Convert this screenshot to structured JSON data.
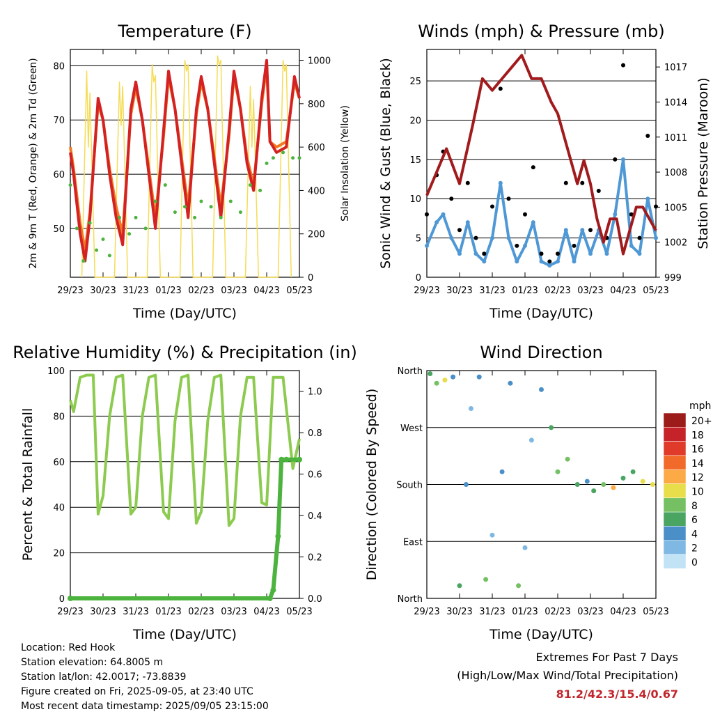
{
  "colors": {
    "temp": "#d42222",
    "temp9": "#f07a22",
    "dew": "#4cb33f",
    "solar": "#f5dc55",
    "gust": "#000000",
    "wind": "#4f98d6",
    "pressure": "#a11b1d",
    "rh": "#8ccb4f",
    "precip": "#4cb33f",
    "extremes_values": "#c0272d"
  },
  "info": {
    "location": "Location: Red Hook",
    "elevation": "Station elevation: 64.8005 m",
    "latlon": "Station lat/lon: 42.0017; -73.8839",
    "created": "Figure created on Fri, 2025-09-05, at 23:40 UTC",
    "latest": "Most recent data timestamp: 2025/09/05 23:15:00"
  },
  "extremes": {
    "title": "Extremes For Past 7 Days",
    "subtitle": "(High/Low/Max Wind/Total Precipitation)",
    "values": "81.2/42.3/15.4/0.67"
  },
  "chart_data": [
    {
      "type": "line",
      "title": "Temperature (F)",
      "xlabel": "Time (Day/UTC)",
      "ylabel": "2m & 9m T (Red, Orange) & 2m Td (Green)",
      "y2label": "Solar Insolation (Yellow)",
      "x_ticks": [
        "29/23",
        "30/23",
        "31/23",
        "01/23",
        "02/23",
        "03/23",
        "04/23",
        "05/23"
      ],
      "ylim": [
        41,
        83
      ],
      "y_ticks": [
        50,
        60,
        70,
        80
      ],
      "y2lim": [
        0,
        1050
      ],
      "y2_ticks": [
        0,
        200,
        400,
        600,
        800,
        1000
      ],
      "series": [
        {
          "name": "2m T",
          "x": [
            0,
            0.1,
            0.3,
            0.45,
            0.6,
            0.85,
            1,
            1.2,
            1.4,
            1.6,
            1.85,
            2,
            2.2,
            2.4,
            2.6,
            2.85,
            3,
            3.2,
            3.4,
            3.6,
            3.85,
            4,
            4.2,
            4.4,
            4.6,
            4.85,
            5,
            5.2,
            5.4,
            5.6,
            5.85,
            6,
            6.1,
            6.3,
            6.6,
            6.85,
            7
          ],
          "values": [
            64,
            60,
            49,
            44,
            52,
            74,
            70,
            60,
            52,
            47,
            72,
            77,
            70,
            60,
            50,
            68,
            79,
            72,
            62,
            52,
            72,
            78,
            72,
            62,
            52,
            68,
            79,
            72,
            62,
            57,
            74,
            81,
            66,
            64,
            65,
            78,
            74
          ]
        },
        {
          "name": "9m T",
          "x": [
            0,
            0.1,
            0.3,
            0.45,
            0.6,
            0.85,
            1,
            1.2,
            1.4,
            1.6,
            1.85,
            2,
            2.2,
            2.4,
            2.6,
            2.85,
            3,
            3.2,
            3.4,
            3.6,
            3.85,
            4,
            4.2,
            4.4,
            4.6,
            4.85,
            5,
            5.2,
            5.4,
            5.6,
            5.85,
            6,
            6.1,
            6.3,
            6.6,
            6.85,
            7
          ],
          "values": [
            65,
            61,
            51,
            46,
            53,
            73,
            70,
            61,
            54,
            49,
            71,
            76,
            70,
            61,
            52,
            67,
            78,
            72,
            63,
            54,
            71,
            77,
            72,
            63,
            54,
            67,
            78,
            72,
            63,
            58,
            73,
            80,
            66,
            65,
            66,
            77,
            74
          ]
        },
        {
          "name": "2m Td",
          "x": [
            0,
            0.2,
            0.4,
            0.6,
            0.8,
            1,
            1.2,
            1.5,
            1.8,
            2,
            2.3,
            2.6,
            2.9,
            3.2,
            3.5,
            3.8,
            4,
            4.3,
            4.6,
            4.9,
            5.2,
            5.5,
            5.8,
            6,
            6.2,
            6.5,
            6.8,
            7
          ],
          "values": [
            58,
            50,
            44,
            51,
            46,
            48,
            45,
            52,
            49,
            52,
            50,
            55,
            58,
            53,
            54,
            52,
            55,
            54,
            52,
            55,
            53,
            58,
            57,
            62,
            63,
            64,
            63,
            63
          ]
        },
        {
          "name": "Solar Insolation",
          "axis": "y2",
          "x": [
            0.35,
            0.5,
            0.55,
            0.6,
            0.75,
            1.35,
            1.5,
            1.55,
            1.6,
            1.75,
            2.35,
            2.5,
            2.55,
            2.6,
            2.75,
            3.35,
            3.5,
            3.55,
            3.6,
            3.75,
            4.35,
            4.5,
            4.55,
            4.6,
            4.75,
            5.35,
            5.5,
            5.55,
            5.6,
            5.75,
            6.35,
            6.5,
            6.55,
            6.6,
            6.75
          ],
          "values": [
            0,
            950,
            600,
            850,
            0,
            0,
            900,
            700,
            880,
            0,
            0,
            980,
            900,
            930,
            0,
            0,
            1000,
            950,
            980,
            0,
            0,
            1020,
            980,
            1000,
            0,
            0,
            880,
            600,
            820,
            0,
            0,
            1000,
            950,
            980,
            0
          ]
        }
      ]
    },
    {
      "type": "line",
      "title": "Winds (mph) & Pressure (mb)",
      "xlabel": "Time (Day/UTC)",
      "ylabel": "Sonic Wind & Gust (Blue, Black)",
      "y2label": "Station Pressure (Maroon)",
      "x_ticks": [
        "29/23",
        "30/23",
        "31/23",
        "01/23",
        "02/23",
        "03/23",
        "04/23",
        "05/23"
      ],
      "ylim": [
        0,
        29
      ],
      "y_ticks": [
        0,
        5,
        10,
        15,
        20,
        25
      ],
      "y2lim": [
        999,
        1018.5
      ],
      "y2_ticks": [
        999,
        1002,
        1005,
        1008,
        1011,
        1014,
        1017
      ],
      "series": [
        {
          "name": "Gust",
          "x": [
            0,
            0.3,
            0.5,
            0.75,
            1,
            1.25,
            1.5,
            1.75,
            2,
            2.25,
            2.5,
            2.75,
            3,
            3.25,
            3.5,
            3.75,
            4,
            4.25,
            4.5,
            4.75,
            5,
            5.25,
            5.5,
            5.75,
            6,
            6.25,
            6.5,
            6.75,
            7
          ],
          "values": [
            8,
            13,
            16,
            10,
            6,
            12,
            5,
            3,
            9,
            24,
            10,
            4,
            8,
            14,
            3,
            2,
            3,
            12,
            4,
            12,
            6,
            11,
            5,
            15,
            27,
            8,
            5,
            18,
            9
          ]
        },
        {
          "name": "Wind",
          "x": [
            0,
            0.3,
            0.5,
            0.75,
            1,
            1.25,
            1.5,
            1.75,
            2,
            2.25,
            2.5,
            2.75,
            3,
            3.25,
            3.5,
            3.75,
            4,
            4.25,
            4.5,
            4.75,
            5,
            5.25,
            5.5,
            5.75,
            6,
            6.25,
            6.5,
            6.75,
            7
          ],
          "values": [
            4,
            7,
            8,
            5,
            3,
            7,
            3,
            2,
            5,
            12,
            5,
            2,
            4,
            7,
            2,
            1.5,
            2,
            6,
            2,
            6,
            3,
            6,
            3,
            8,
            15,
            4,
            3,
            10,
            5
          ]
        },
        {
          "name": "Pressure",
          "axis": "y2",
          "x": [
            0,
            0.3,
            0.6,
            1,
            1.4,
            1.7,
            2,
            2.3,
            2.6,
            2.9,
            3.2,
            3.5,
            3.8,
            4,
            4.3,
            4.6,
            4.8,
            5,
            5.2,
            5.4,
            5.6,
            5.8,
            6,
            6.2,
            6.4,
            6.6,
            6.8,
            7
          ],
          "values": [
            1006,
            1008,
            1010,
            1007,
            1012,
            1016,
            1015,
            1016,
            1017,
            1018,
            1016,
            1016,
            1014,
            1013,
            1010,
            1007,
            1009,
            1007,
            1004,
            1002,
            1004,
            1004,
            1001,
            1003,
            1005,
            1005,
            1004,
            1003
          ]
        }
      ]
    },
    {
      "type": "line",
      "title": "Relative Humidity (%) & Precipitation (in)",
      "xlabel": "Time (Day/UTC)",
      "ylabel": "Percent & Total Rainfall",
      "x_ticks": [
        "29/23",
        "30/23",
        "31/23",
        "01/23",
        "02/23",
        "03/23",
        "04/23",
        "05/23"
      ],
      "ylim": [
        0,
        100
      ],
      "y_ticks": [
        0,
        20,
        40,
        60,
        80,
        100
      ],
      "y2lim": [
        0,
        1.1
      ],
      "y2_ticks": [
        0.0,
        0.2,
        0.4,
        0.6,
        0.8,
        1.0
      ],
      "series": [
        {
          "name": "RH",
          "x": [
            0,
            0.1,
            0.3,
            0.5,
            0.7,
            0.85,
            1,
            1.2,
            1.4,
            1.6,
            1.85,
            2,
            2.2,
            2.4,
            2.6,
            2.85,
            3,
            3.2,
            3.4,
            3.6,
            3.85,
            4,
            4.2,
            4.4,
            4.6,
            4.85,
            5,
            5.2,
            5.4,
            5.6,
            5.85,
            6,
            6.2,
            6.5,
            6.8,
            7
          ],
          "values": [
            87,
            82,
            97,
            98,
            98,
            37,
            45,
            80,
            97,
            98,
            37,
            40,
            80,
            97,
            98,
            38,
            35,
            78,
            97,
            98,
            33,
            38,
            78,
            97,
            98,
            32,
            35,
            80,
            97,
            97,
            42,
            41,
            97,
            97,
            57,
            70
          ]
        },
        {
          "name": "Precipitation",
          "axis": "y2",
          "x": [
            0,
            6.1,
            6.2,
            6.35,
            6.45,
            6.6,
            7
          ],
          "values": [
            0,
            0,
            0.04,
            0.3,
            0.67,
            0.67,
            0.67
          ]
        }
      ]
    },
    {
      "type": "scatter",
      "title": "Wind Direction",
      "xlabel": "Time (Day/UTC)",
      "ylabel": "Direction (Colored By Speed)",
      "x_ticks": [
        "29/23",
        "30/23",
        "31/23",
        "01/23",
        "02/23",
        "03/23",
        "04/23",
        "05/23"
      ],
      "y_ticks": [
        "North",
        "East",
        "South",
        "West",
        "North"
      ],
      "ylim": [
        0,
        360
      ],
      "legend": {
        "title": "mph",
        "labels": [
          "20+",
          "18",
          "16",
          "14",
          "12",
          "10",
          "8",
          "6",
          "4",
          "2",
          "0"
        ],
        "colors": [
          "#9c1b1b",
          "#c6222a",
          "#e03a2a",
          "#f26a2a",
          "#fbaa45",
          "#e8de4b",
          "#74c062",
          "#4aa563",
          "#4a8fc8",
          "#7fb9e3",
          "#c2e3f6"
        ]
      },
      "points": [
        {
          "x": 0.1,
          "dir": 355,
          "speed": 5
        },
        {
          "x": 0.3,
          "dir": 340,
          "speed": 8
        },
        {
          "x": 0.55,
          "dir": 345,
          "speed": 10
        },
        {
          "x": 0.8,
          "dir": 350,
          "speed": 4
        },
        {
          "x": 1,
          "dir": 20,
          "speed": 6
        },
        {
          "x": 1.2,
          "dir": 180,
          "speed": 3
        },
        {
          "x": 1.35,
          "dir": 300,
          "speed": 2
        },
        {
          "x": 1.6,
          "dir": 350,
          "speed": 4
        },
        {
          "x": 1.8,
          "dir": 30,
          "speed": 8
        },
        {
          "x": 2,
          "dir": 100,
          "speed": 2
        },
        {
          "x": 2.3,
          "dir": 200,
          "speed": 3
        },
        {
          "x": 2.55,
          "dir": 340,
          "speed": 4
        },
        {
          "x": 2.8,
          "dir": 20,
          "speed": 7
        },
        {
          "x": 3,
          "dir": 80,
          "speed": 2
        },
        {
          "x": 3.2,
          "dir": 250,
          "speed": 1
        },
        {
          "x": 3.5,
          "dir": 330,
          "speed": 4
        },
        {
          "x": 3.8,
          "dir": 270,
          "speed": 6
        },
        {
          "x": 4,
          "dir": 200,
          "speed": 7
        },
        {
          "x": 4.3,
          "dir": 220,
          "speed": 8
        },
        {
          "x": 4.6,
          "dir": 180,
          "speed": 6
        },
        {
          "x": 4.9,
          "dir": 185,
          "speed": 4
        },
        {
          "x": 5.1,
          "dir": 170,
          "speed": 5
        },
        {
          "x": 5.4,
          "dir": 180,
          "speed": 8
        },
        {
          "x": 5.7,
          "dir": 175,
          "speed": 12
        },
        {
          "x": 6,
          "dir": 190,
          "speed": 6
        },
        {
          "x": 6.3,
          "dir": 200,
          "speed": 5
        },
        {
          "x": 6.6,
          "dir": 185,
          "speed": 9
        },
        {
          "x": 6.9,
          "dir": 180,
          "speed": 10
        }
      ]
    }
  ]
}
